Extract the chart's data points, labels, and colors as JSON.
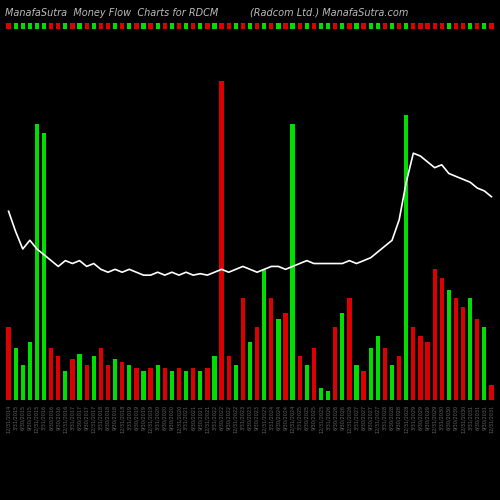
{
  "title_left": "ManafaSutra  Money Flow  Charts for RDCM",
  "title_right": "(Radcom Ltd.) ManafaSutra.com",
  "background_color": "#000000",
  "green_color": "#00dd00",
  "red_color": "#dd0000",
  "dark_red_color": "#880000",
  "line_color": "#ffffff",
  "title_color": "#bbbbbb",
  "xlabel_color": "#666666",
  "figsize": [
    5.0,
    5.0
  ],
  "dpi": 100,
  "bar_heights": [
    2.5,
    1.8,
    1.2,
    2.0,
    9.5,
    9.2,
    1.8,
    1.5,
    1.0,
    1.4,
    1.6,
    1.2,
    1.5,
    1.8,
    1.2,
    1.4,
    1.3,
    1.2,
    1.1,
    1.0,
    1.1,
    1.2,
    1.1,
    1.0,
    1.1,
    1.0,
    1.1,
    1.0,
    1.1,
    1.5,
    11.0,
    1.5,
    1.2,
    3.5,
    2.0,
    2.5,
    4.5,
    3.5,
    2.8,
    3.0,
    9.5,
    1.5,
    1.2,
    1.8,
    0.4,
    0.3,
    2.5,
    3.0,
    3.5,
    1.2,
    1.0,
    1.8,
    2.2,
    1.8,
    1.2,
    1.5,
    9.8,
    2.5,
    2.2,
    2.0,
    4.5,
    4.2,
    3.8,
    3.5,
    3.2,
    3.5,
    2.8,
    2.5,
    0.5
  ],
  "bar_colors_list": [
    "r",
    "g",
    "g",
    "g",
    "g",
    "g",
    "r",
    "r",
    "g",
    "r",
    "g",
    "r",
    "g",
    "r",
    "r",
    "g",
    "r",
    "g",
    "r",
    "g",
    "r",
    "g",
    "r",
    "g",
    "r",
    "g",
    "r",
    "g",
    "r",
    "g",
    "r",
    "r",
    "g",
    "r",
    "g",
    "r",
    "g",
    "r",
    "g",
    "r",
    "g",
    "r",
    "g",
    "r",
    "g",
    "g",
    "r",
    "g",
    "r",
    "g",
    "r",
    "g",
    "g",
    "r",
    "g",
    "r",
    "g",
    "r",
    "r",
    "r",
    "r",
    "r",
    "g",
    "r",
    "r",
    "g",
    "r",
    "g",
    "r"
  ],
  "line_values": [
    6.5,
    5.8,
    5.2,
    5.5,
    5.2,
    5.0,
    4.8,
    4.6,
    4.8,
    4.7,
    4.8,
    4.6,
    4.7,
    4.5,
    4.4,
    4.5,
    4.4,
    4.5,
    4.4,
    4.3,
    4.3,
    4.4,
    4.3,
    4.4,
    4.3,
    4.4,
    4.3,
    4.35,
    4.3,
    4.4,
    4.5,
    4.4,
    4.5,
    4.6,
    4.5,
    4.4,
    4.5,
    4.6,
    4.6,
    4.5,
    4.6,
    4.7,
    4.8,
    4.7,
    4.7,
    4.7,
    4.7,
    4.7,
    4.8,
    4.7,
    4.8,
    4.9,
    5.1,
    5.3,
    5.5,
    6.2,
    7.5,
    8.5,
    8.4,
    8.2,
    8.0,
    8.1,
    7.8,
    7.7,
    7.6,
    7.5,
    7.3,
    7.2,
    7.0
  ],
  "date_labels": [
    "12/31/2014",
    "3/31/2015",
    "6/30/2015",
    "9/30/2015",
    "12/31/2015",
    "3/31/2016",
    "6/30/2016",
    "9/30/2016",
    "12/31/2016",
    "3/31/2017",
    "6/30/2017",
    "9/30/2017",
    "12/31/2017",
    "3/31/2018",
    "6/30/2018",
    "9/30/2018",
    "12/31/2018",
    "3/31/2019",
    "6/30/2019",
    "9/30/2019",
    "12/31/2019",
    "3/31/2020",
    "6/30/2020",
    "9/30/2020",
    "12/31/2020",
    "3/31/2021",
    "6/30/2021",
    "9/30/2021",
    "12/31/2021",
    "3/31/2022",
    "6/30/2022",
    "9/30/2022",
    "12/31/2022",
    "3/31/2023",
    "6/30/2023",
    "9/30/2023",
    "12/31/2023",
    "3/31/2024",
    "6/30/2024",
    "9/30/2024",
    "12/31/2024",
    "3/31/2025",
    "6/30/2025",
    "9/30/2025",
    "12/31/2025",
    "3/31/2026",
    "6/30/2026",
    "9/30/2026",
    "12/31/2026",
    "3/31/2027",
    "6/30/2027",
    "9/30/2027",
    "12/31/2027",
    "3/31/2028",
    "6/30/2028",
    "9/30/2028",
    "12/31/2028",
    "3/31/2029",
    "6/30/2029",
    "9/30/2029",
    "12/31/2029",
    "3/31/2030",
    "6/30/2030",
    "9/30/2030",
    "12/31/2030",
    "3/31/2031",
    "6/30/2031",
    "9/30/2031",
    "12/31/2031"
  ]
}
